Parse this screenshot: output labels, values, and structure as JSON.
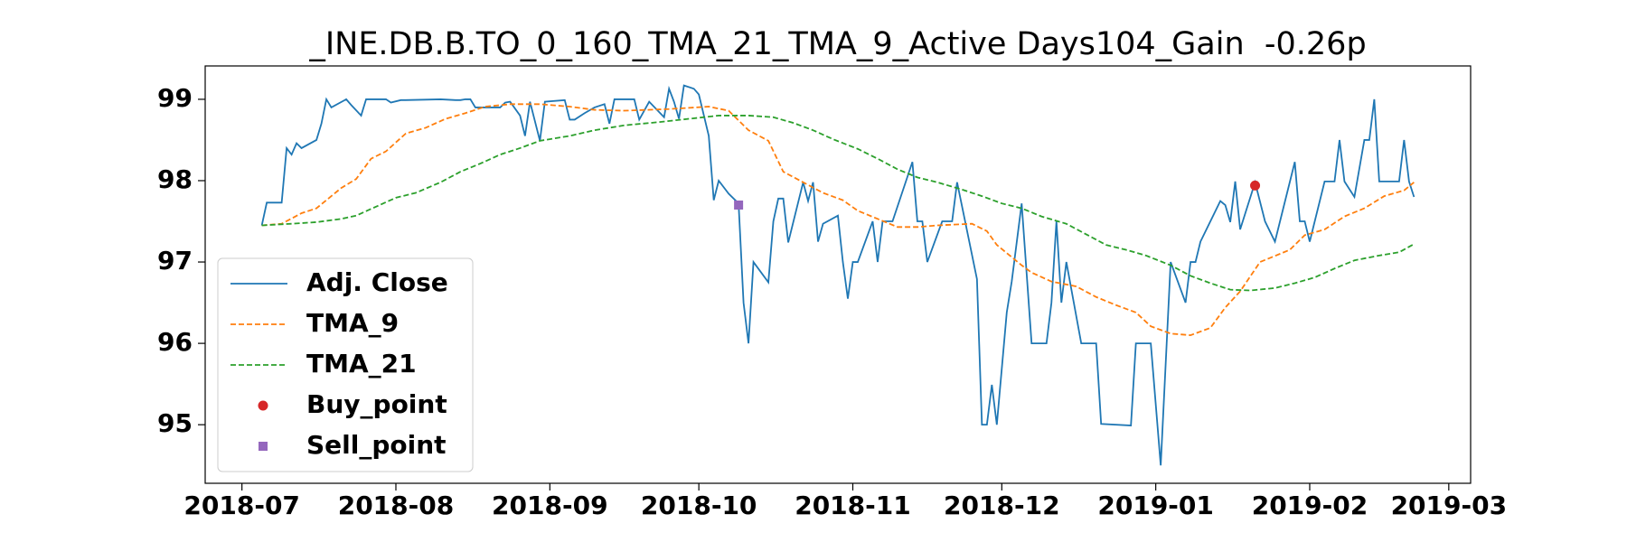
{
  "chart_data": {
    "type": "line",
    "title": "_INE.DB.B.TO_0_160_TMA_21_TMA_9_Active Days104_Gain  -0.26p",
    "xlim": [
      17705.6,
      17960.4
    ],
    "xticks": [
      {
        "value": 17713,
        "label": "2018-07"
      },
      {
        "value": 17744,
        "label": "2018-08"
      },
      {
        "value": 17775,
        "label": "2018-09"
      },
      {
        "value": 17805,
        "label": "2018-10"
      },
      {
        "value": 17836,
        "label": "2018-11"
      },
      {
        "value": 17866,
        "label": "2018-12"
      },
      {
        "value": 17897,
        "label": "2019-01"
      },
      {
        "value": 17928,
        "label": "2019-02"
      },
      {
        "value": 17956,
        "label": "2019-03"
      }
    ],
    "ylim": [
      94.28,
      99.41
    ],
    "yticks": [
      95,
      96,
      97,
      98,
      99
    ],
    "legend": "lower left",
    "series": [
      {
        "name": "Adj. Close",
        "color": "#1f77b4",
        "linestyle": "solid",
        "x": [
          17717,
          17718,
          17721,
          17722,
          17723,
          17724,
          17725,
          17728,
          17729,
          17730,
          17731,
          17734,
          17735,
          17737,
          17738,
          17742,
          17743,
          17745,
          17746,
          17753,
          17756,
          17757,
          17758,
          17759,
          17760,
          17765,
          17766,
          17767,
          17769,
          17770,
          17771,
          17773,
          17774,
          17778,
          17779,
          17780,
          17782,
          17784,
          17786,
          17787,
          17788,
          17792,
          17793,
          17795,
          17798,
          17799,
          17800,
          17801,
          17802,
          17804,
          17805,
          17807,
          17808,
          17809,
          17811,
          17813,
          17814,
          17815,
          17816,
          17819,
          17820,
          17821,
          17822,
          17823,
          17826,
          17827,
          17828,
          17829,
          17830,
          17833,
          17834,
          17835,
          17836,
          17837,
          17840,
          17841,
          17842,
          17844,
          17848,
          17849,
          17850,
          17851,
          17854,
          17856,
          17857,
          17861,
          17862,
          17863,
          17864,
          17865,
          17867,
          17868,
          17870,
          17872,
          17875,
          17876,
          17877,
          17878,
          17879,
          17882,
          17885,
          17886,
          17892,
          17893,
          17896,
          17898,
          17900,
          17903,
          17904,
          17905,
          17906,
          17910,
          17911,
          17912,
          17913,
          17914,
          17917,
          17919,
          17921,
          17925,
          17926,
          17927,
          17928,
          17931,
          17933,
          17934,
          17935,
          17937,
          17939,
          17940,
          17941,
          17942,
          17946,
          17947,
          17948,
          17949
        ],
        "values": [
          97.45,
          97.73,
          97.73,
          98.4,
          98.32,
          98.46,
          98.4,
          98.5,
          98.7,
          99.0,
          98.9,
          99.0,
          98.93,
          98.8,
          99.0,
          99.0,
          98.96,
          98.99,
          98.99,
          99.0,
          98.99,
          98.99,
          99.0,
          99.0,
          98.9,
          98.9,
          98.96,
          98.97,
          98.8,
          98.55,
          98.97,
          98.49,
          98.97,
          98.99,
          98.75,
          98.75,
          98.83,
          98.9,
          98.94,
          98.7,
          99.0,
          99.0,
          98.75,
          98.97,
          98.78,
          99.13,
          98.97,
          98.76,
          99.17,
          99.13,
          99.06,
          98.55,
          97.76,
          98.0,
          97.84,
          97.72,
          96.5,
          96.0,
          97.0,
          96.75,
          97.5,
          97.78,
          97.78,
          97.24,
          97.98,
          97.75,
          97.98,
          97.25,
          97.47,
          97.57,
          97.0,
          96.55,
          97.0,
          97.0,
          97.5,
          97.0,
          97.5,
          97.5,
          98.23,
          97.5,
          97.5,
          97.0,
          97.5,
          97.5,
          97.98,
          96.79,
          95.0,
          95.0,
          95.49,
          95.0,
          96.38,
          96.76,
          97.72,
          96.0,
          96.0,
          96.5,
          97.5,
          96.5,
          97.0,
          96.0,
          96.0,
          95.01,
          94.99,
          96.0,
          96.0,
          94.5,
          97.0,
          96.5,
          97.0,
          97.0,
          97.25,
          97.75,
          97.7,
          97.49,
          97.99,
          97.4,
          97.98,
          97.5,
          97.25,
          98.23,
          97.5,
          97.5,
          97.25,
          97.99,
          97.99,
          98.5,
          97.99,
          97.8,
          98.5,
          98.5,
          99.0,
          97.99,
          97.99,
          98.5,
          97.99,
          97.8
        ]
      },
      {
        "name": "TMA_9",
        "color": "#ff7f0e",
        "linestyle": "dashed",
        "x": [
          17717,
          17721,
          17725,
          17728,
          17733,
          17736,
          17739,
          17742,
          17746,
          17750,
          17754,
          17758,
          17762,
          17767,
          17773,
          17779,
          17784,
          17790,
          17799,
          17807,
          17811,
          17815,
          17819,
          17822,
          17826,
          17830,
          17834,
          17837,
          17841,
          17845,
          17849,
          17853,
          17860,
          17863,
          17865,
          17870,
          17872,
          17876,
          17881,
          17885,
          17889,
          17893,
          17896,
          17900,
          17904,
          17908,
          17911,
          17914,
          17918,
          17924,
          17927,
          17931,
          17935,
          17939,
          17943,
          17947,
          17949
        ],
        "values": [
          97.45,
          97.47,
          97.6,
          97.66,
          97.91,
          98.02,
          98.27,
          98.36,
          98.58,
          98.65,
          98.76,
          98.83,
          98.91,
          98.94,
          98.94,
          98.91,
          98.87,
          98.86,
          98.88,
          98.91,
          98.86,
          98.62,
          98.49,
          98.11,
          97.98,
          97.85,
          97.76,
          97.63,
          97.53,
          97.43,
          97.43,
          97.45,
          97.47,
          97.38,
          97.21,
          96.96,
          96.87,
          96.76,
          96.7,
          96.57,
          96.47,
          96.38,
          96.21,
          96.12,
          96.1,
          96.19,
          96.44,
          96.64,
          97.0,
          97.15,
          97.33,
          97.4,
          97.56,
          97.66,
          97.81,
          97.88,
          97.98
        ]
      },
      {
        "name": "TMA_21",
        "color": "#2ca02c",
        "linestyle": "dashed",
        "x": [
          17717,
          17723,
          17728,
          17733,
          17736,
          17740,
          17744,
          17748,
          17753,
          17757,
          17761,
          17765,
          17769,
          17773,
          17779,
          17784,
          17790,
          17797,
          17803,
          17809,
          17815,
          17820,
          17824,
          17828,
          17832,
          17837,
          17841,
          17845,
          17849,
          17853,
          17858,
          17862,
          17866,
          17870,
          17874,
          17879,
          17883,
          17887,
          17891,
          17895,
          17900,
          17904,
          17908,
          17912,
          17916,
          17921,
          17925,
          17929,
          17933,
          17937,
          17942,
          17946,
          17949
        ],
        "values": [
          97.45,
          97.47,
          97.49,
          97.53,
          97.57,
          97.68,
          97.79,
          97.85,
          97.98,
          98.11,
          98.21,
          98.32,
          98.4,
          98.49,
          98.55,
          98.62,
          98.68,
          98.72,
          98.76,
          98.8,
          98.8,
          98.78,
          98.71,
          98.62,
          98.51,
          98.39,
          98.27,
          98.14,
          98.04,
          97.98,
          97.89,
          97.81,
          97.72,
          97.66,
          97.56,
          97.47,
          97.34,
          97.21,
          97.15,
          97.08,
          96.96,
          96.83,
          96.74,
          96.66,
          96.65,
          96.68,
          96.74,
          96.81,
          96.92,
          97.02,
          97.08,
          97.12,
          97.22
        ]
      },
      {
        "name": "Buy_point",
        "color": "#d62728",
        "marker": "circle",
        "x": [
          17917
        ],
        "values": [
          97.94
        ]
      },
      {
        "name": "Sell_point",
        "color": "#9467bd",
        "marker": "square",
        "x": [
          17813
        ],
        "values": [
          97.7
        ]
      }
    ]
  }
}
